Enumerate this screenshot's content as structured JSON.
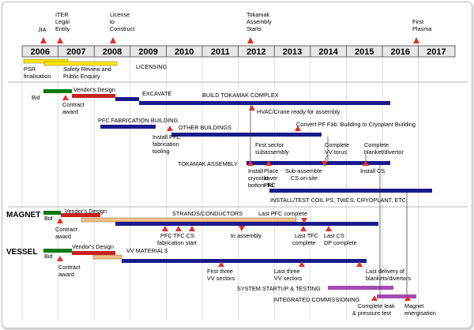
{
  "years": [
    "2006",
    "2007",
    "2008",
    "2009",
    "2010",
    "2011",
    "2012",
    "2013",
    "2014",
    "2015",
    "2016",
    "2017"
  ],
  "milestones": {
    "jia": "JIA",
    "iter_legal": [
      "ITER",
      "Legal",
      "Entity"
    ],
    "license": [
      "License",
      "to",
      "Construct"
    ],
    "tokamak_assembly": [
      "Tokamak",
      "Assembly",
      "Starts"
    ],
    "first_plasma": [
      "First",
      "Plasma"
    ]
  },
  "licensing": {
    "psr": [
      "PSR",
      "finalisation"
    ],
    "safety": [
      "Safety Review and",
      "Public Enquiry"
    ],
    "licensing": "LICENSING"
  },
  "buildings": {
    "bid": "Bid",
    "vendors_design": "Vendor's Design",
    "contract_award": [
      "Contract",
      "award"
    ],
    "excavate": "EXCAVATE",
    "build_tokamak_complex": "BUILD TOKAMAK COMPLEX",
    "hvac": "HVAC/Crane ready for assembly",
    "pfc_building": "PFC FABRICATION BUILDING",
    "other_buildings": "OTHER BUILDINGS",
    "convert_pf": "Convert PF Fab. Building to Cryoplant Building",
    "install_pfc_tooling": [
      "Install PFC",
      "fabrication",
      "tooling"
    ]
  },
  "assembly": {
    "tokamak_assembly": "TOKAMAK ASSEMBLY",
    "first_sector": [
      "First sector",
      "subassembly"
    ],
    "complete_vv_torus": [
      "Complete",
      "VV torus"
    ],
    "complete_blanket": [
      "Complete",
      "blanket/divertor"
    ],
    "install_cryostat": [
      "Install",
      "cryostat",
      "bottom lid"
    ],
    "place_lower_pfc": [
      "Place",
      "lower",
      "PFC"
    ],
    "sub_assemble_cs": [
      "Sub-assemble",
      "CS on-site"
    ],
    "install_cs": "Install CS",
    "install_test_coil": "INSTALL/TEST COIL PS, TWCS, CRYOPLANT, ETC."
  },
  "magnet": {
    "section": "MAGNET",
    "bid": "Bid",
    "vendors_design": "Vendor's Design",
    "contract_award": [
      "Contract",
      "award"
    ],
    "strands": "STRANDS/CONDUCTORS",
    "last_pfc": "Last PFC complete",
    "pfc_tfc_cs": [
      "PFC TFC CS",
      "fabrication start"
    ],
    "to_assembly": "to assembly",
    "last_tfc": [
      "Last TFC",
      "complete"
    ],
    "last_cs": [
      "Last CS",
      "DP complete"
    ]
  },
  "vessel": {
    "section": "VESSEL",
    "bid": "Bid",
    "vendors_design": "Vendor's Design",
    "vv_materials": "VV MATERIALS",
    "contract_award": [
      "Contract",
      "award"
    ],
    "first_three": [
      "First three",
      "VV sectors"
    ],
    "last_three": [
      "Last three",
      "VV sectors"
    ],
    "last_delivery": [
      "Last delivery of",
      "blankets/divertors"
    ]
  },
  "commissioning": {
    "startup": "SYSTEM STARTUP & TESTING",
    "integrated": "INTEGRATED COMMISSIONING",
    "leak_test": [
      "Complete leak",
      "& pressure test"
    ],
    "magnet_energisation": [
      "Magnet",
      "energisation"
    ]
  },
  "colors": {
    "navy": "#1a1a8c",
    "red": "#cc1f1f",
    "green": "#0a7a14",
    "yellow": "#ffe600",
    "tan": "#f0c08a",
    "purple": "#a64ab3",
    "year_box": "#e8e8e8",
    "triangle": "#e0322a"
  }
}
